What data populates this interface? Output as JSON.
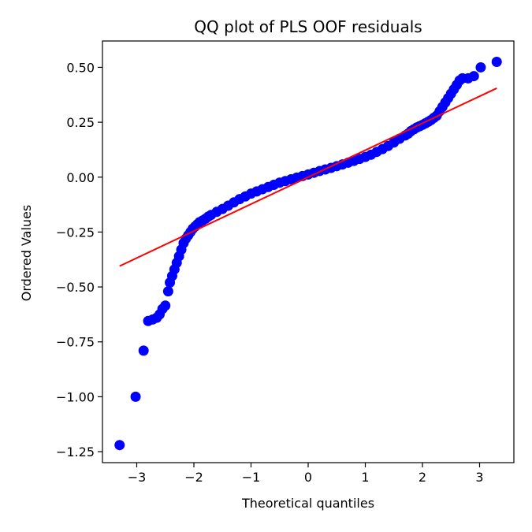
{
  "chart_data": {
    "type": "scatter",
    "title": "QQ plot of PLS OOF residuals",
    "xlabel": "Theoretical quantiles",
    "ylabel": "Ordered Values",
    "xlim": [
      -3.6,
      3.6
    ],
    "ylim": [
      -1.3,
      0.62
    ],
    "xticks": [
      {
        "value": -3,
        "label": "−3"
      },
      {
        "value": -2,
        "label": "−2"
      },
      {
        "value": -1,
        "label": "−1"
      },
      {
        "value": 0,
        "label": "0"
      },
      {
        "value": 1,
        "label": "1"
      },
      {
        "value": 2,
        "label": "2"
      },
      {
        "value": 3,
        "label": "3"
      }
    ],
    "yticks": [
      {
        "value": 0.5,
        "label": "0.50"
      },
      {
        "value": 0.25,
        "label": "0.25"
      },
      {
        "value": 0.0,
        "label": "0.00"
      },
      {
        "value": -0.25,
        "label": "−0.25"
      },
      {
        "value": -0.5,
        "label": "−0.50"
      },
      {
        "value": -0.75,
        "label": "−0.75"
      },
      {
        "value": -1.0,
        "label": "−1.00"
      },
      {
        "value": -1.25,
        "label": "−1.25"
      }
    ],
    "grid": false,
    "colors": {
      "points": "#0000ff",
      "fit_line": "#ff0000"
    },
    "series": [
      {
        "kind": "points",
        "x": [
          -3.3,
          -3.02,
          -2.88,
          -2.8,
          -2.72,
          -2.65,
          -2.6,
          -2.55,
          -2.5,
          -2.45,
          -2.42,
          -2.38,
          -2.34,
          -2.3,
          -2.26,
          -2.22,
          -2.18,
          -2.14,
          -2.1,
          -2.06,
          -2.02,
          -1.98,
          -1.94,
          -1.9,
          -1.85,
          -1.8,
          -1.75,
          -1.7,
          -1.6,
          -1.5,
          -1.4,
          -1.3,
          -1.2,
          -1.1,
          -1.0,
          -0.9,
          -0.8,
          -0.7,
          -0.6,
          -0.5,
          -0.4,
          -0.3,
          -0.2,
          -0.1,
          0.0,
          0.1,
          0.2,
          0.3,
          0.4,
          0.5,
          0.6,
          0.7,
          0.8,
          0.9,
          1.0,
          1.1,
          1.2,
          1.3,
          1.4,
          1.5,
          1.6,
          1.7,
          1.75,
          1.8,
          1.85,
          1.9,
          1.95,
          2.0,
          2.05,
          2.1,
          2.15,
          2.2,
          2.25,
          2.3,
          2.35,
          2.4,
          2.45,
          2.5,
          2.55,
          2.6,
          2.65,
          2.7,
          2.8,
          2.9,
          3.02,
          3.3
        ],
        "y": [
          -1.22,
          -1.0,
          -0.79,
          -0.655,
          -0.648,
          -0.64,
          -0.625,
          -0.6,
          -0.585,
          -0.52,
          -0.48,
          -0.45,
          -0.42,
          -0.39,
          -0.36,
          -0.33,
          -0.3,
          -0.28,
          -0.265,
          -0.25,
          -0.235,
          -0.225,
          -0.215,
          -0.205,
          -0.198,
          -0.19,
          -0.18,
          -0.172,
          -0.158,
          -0.145,
          -0.13,
          -0.115,
          -0.1,
          -0.088,
          -0.075,
          -0.065,
          -0.055,
          -0.045,
          -0.035,
          -0.025,
          -0.018,
          -0.01,
          -0.002,
          0.005,
          0.012,
          0.02,
          0.028,
          0.035,
          0.042,
          0.05,
          0.058,
          0.066,
          0.074,
          0.083,
          0.092,
          0.102,
          0.115,
          0.128,
          0.142,
          0.158,
          0.175,
          0.19,
          0.198,
          0.21,
          0.218,
          0.226,
          0.232,
          0.238,
          0.245,
          0.252,
          0.26,
          0.27,
          0.28,
          0.3,
          0.32,
          0.34,
          0.36,
          0.38,
          0.4,
          0.42,
          0.44,
          0.45,
          0.45,
          0.46,
          0.5,
          0.525
        ]
      },
      {
        "kind": "line",
        "x": [
          -3.3,
          3.3
        ],
        "y": [
          -0.405,
          0.405
        ]
      }
    ]
  }
}
